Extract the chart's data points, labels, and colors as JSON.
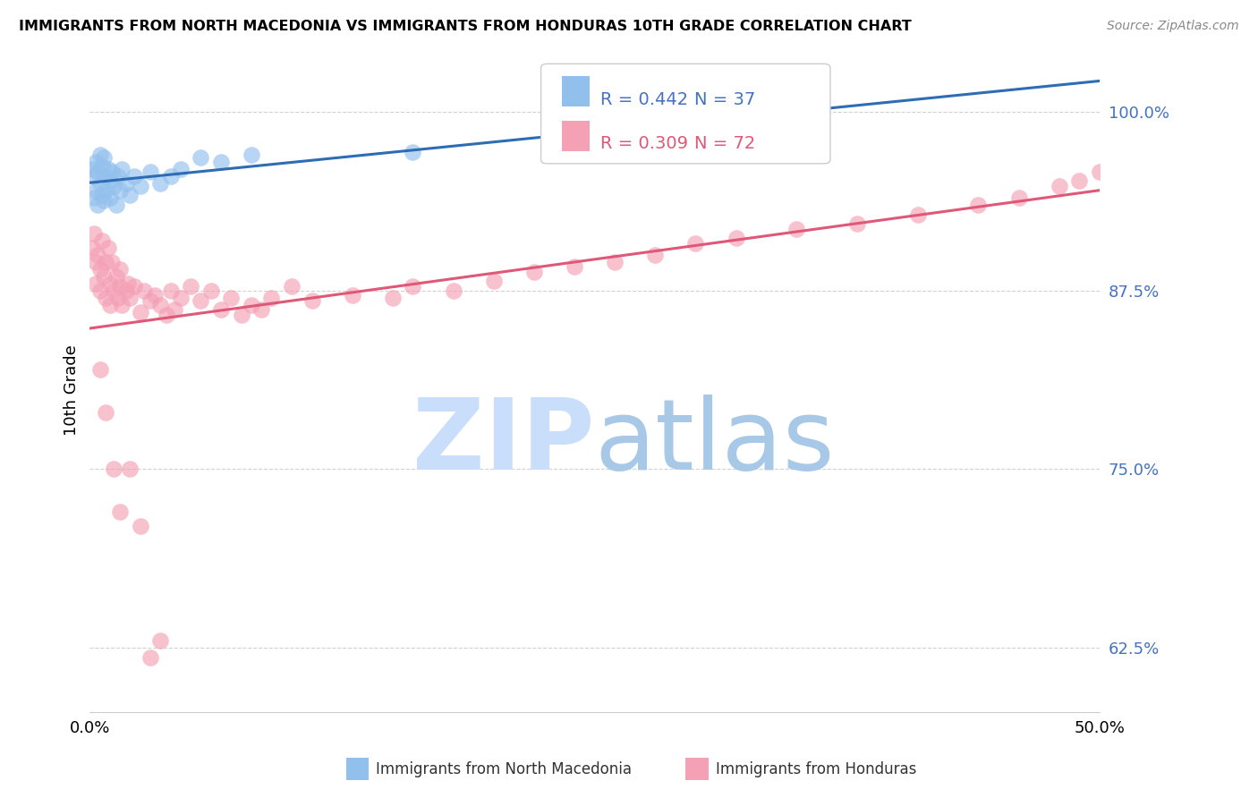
{
  "title": "IMMIGRANTS FROM NORTH MACEDONIA VS IMMIGRANTS FROM HONDURAS 10TH GRADE CORRELATION CHART",
  "source": "Source: ZipAtlas.com",
  "ylabel": "10th Grade",
  "ytick_labels": [
    "100.0%",
    "87.5%",
    "75.0%",
    "62.5%"
  ],
  "ytick_values": [
    1.0,
    0.875,
    0.75,
    0.625
  ],
  "xlim": [
    0.0,
    0.5
  ],
  "ylim": [
    0.58,
    1.03
  ],
  "legend_r_blue": "R = 0.442",
  "legend_n_blue": "N = 37",
  "legend_r_pink": "R = 0.309",
  "legend_n_pink": "N = 72",
  "color_blue": "#92C0ED",
  "color_pink": "#F4A0B5",
  "color_blue_line": "#2E6DB4",
  "color_pink_line": "#E05878",
  "watermark_zip_color": "#C8DEFA",
  "watermark_atlas_color": "#A8C8E8",
  "north_macedonia_x": [
    0.001,
    0.002,
    0.002,
    0.003,
    0.003,
    0.004,
    0.004,
    0.005,
    0.005,
    0.006,
    0.006,
    0.007,
    0.007,
    0.008,
    0.008,
    0.009,
    0.01,
    0.01,
    0.011,
    0.012,
    0.013,
    0.014,
    0.015,
    0.016,
    0.018,
    0.02,
    0.022,
    0.025,
    0.03,
    0.035,
    0.04,
    0.045,
    0.055,
    0.065,
    0.08,
    0.16,
    0.28
  ],
  "north_macedonia_y": [
    0.96,
    0.955,
    0.94,
    0.965,
    0.945,
    0.958,
    0.935,
    0.97,
    0.95,
    0.962,
    0.942,
    0.968,
    0.938,
    0.955,
    0.945,
    0.96,
    0.952,
    0.94,
    0.958,
    0.948,
    0.935,
    0.955,
    0.945,
    0.96,
    0.95,
    0.942,
    0.955,
    0.948,
    0.958,
    0.95,
    0.955,
    0.96,
    0.968,
    0.965,
    0.97,
    0.972,
    0.988
  ],
  "honduras_x": [
    0.001,
    0.002,
    0.003,
    0.003,
    0.004,
    0.005,
    0.005,
    0.006,
    0.007,
    0.008,
    0.008,
    0.009,
    0.01,
    0.01,
    0.011,
    0.012,
    0.013,
    0.014,
    0.015,
    0.015,
    0.016,
    0.018,
    0.019,
    0.02,
    0.022,
    0.025,
    0.027,
    0.03,
    0.032,
    0.035,
    0.038,
    0.04,
    0.042,
    0.045,
    0.05,
    0.055,
    0.06,
    0.065,
    0.07,
    0.075,
    0.08,
    0.085,
    0.09,
    0.1,
    0.11,
    0.13,
    0.15,
    0.16,
    0.18,
    0.2,
    0.22,
    0.24,
    0.26,
    0.28,
    0.3,
    0.32,
    0.35,
    0.38,
    0.41,
    0.44,
    0.46,
    0.48,
    0.49,
    0.5,
    0.005,
    0.008,
    0.012,
    0.015,
    0.02,
    0.025,
    0.03,
    0.035
  ],
  "honduras_y": [
    0.905,
    0.915,
    0.895,
    0.88,
    0.9,
    0.89,
    0.875,
    0.91,
    0.885,
    0.895,
    0.87,
    0.905,
    0.88,
    0.865,
    0.895,
    0.875,
    0.885,
    0.87,
    0.89,
    0.878,
    0.865,
    0.875,
    0.88,
    0.87,
    0.878,
    0.86,
    0.875,
    0.868,
    0.872,
    0.865,
    0.858,
    0.875,
    0.862,
    0.87,
    0.878,
    0.868,
    0.875,
    0.862,
    0.87,
    0.858,
    0.865,
    0.862,
    0.87,
    0.878,
    0.868,
    0.872,
    0.87,
    0.878,
    0.875,
    0.882,
    0.888,
    0.892,
    0.895,
    0.9,
    0.908,
    0.912,
    0.918,
    0.922,
    0.928,
    0.935,
    0.94,
    0.948,
    0.952,
    0.958,
    0.82,
    0.79,
    0.75,
    0.72,
    0.75,
    0.71,
    0.618,
    0.63
  ]
}
